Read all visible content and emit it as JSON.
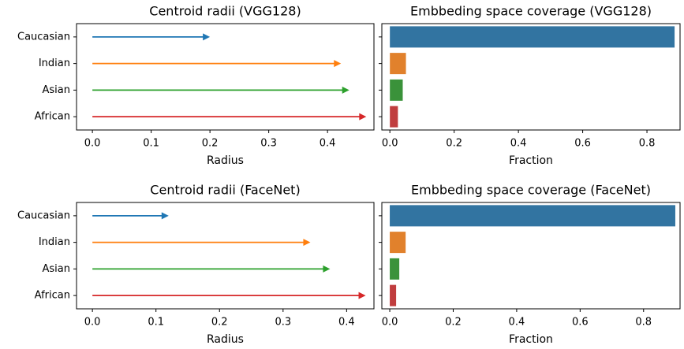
{
  "chart_data": [
    {
      "type": "arrow",
      "title": "Centroid radii (VGG128)",
      "xlabel": "Radius",
      "categories": [
        "Caucasian",
        "Indian",
        "Asian",
        "African"
      ],
      "values": [
        0.2,
        0.423,
        0.437,
        0.466
      ],
      "colors": [
        "#1f77b4",
        "#ff7f0e",
        "#2ca02c",
        "#d62728"
      ],
      "xlim": [
        -0.027,
        0.479
      ],
      "xticks": [
        {
          "value": 0,
          "label": "0.0"
        },
        0.1,
        0.2,
        0.3,
        0.4
      ]
    },
    {
      "type": "barh",
      "title": "Embbeding space coverage (VGG128)",
      "xlabel": "Fraction",
      "values": [
        0.886,
        0.05,
        0.04,
        0.025
      ],
      "colors": [
        "#3274a1",
        "#e1812c",
        "#3a923a",
        "#c03d3e"
      ],
      "xlim": [
        -0.025,
        0.903
      ],
      "xticks": [
        {
          "value": 0,
          "label": "0.0"
        },
        0.2,
        0.4,
        0.6,
        0.8
      ]
    },
    {
      "type": "arrow",
      "title": "Centroid radii (FaceNet)",
      "xlabel": "Radius",
      "categories": [
        "Caucasian",
        "Indian",
        "Asian",
        "African"
      ],
      "values": [
        0.12,
        0.343,
        0.374,
        0.43
      ],
      "colors": [
        "#1f77b4",
        "#ff7f0e",
        "#2ca02c",
        "#d62728"
      ],
      "xlim": [
        -0.025,
        0.443
      ],
      "xticks": [
        {
          "value": 0,
          "label": "0.0"
        },
        0.1,
        0.2,
        0.3,
        0.4
      ]
    },
    {
      "type": "barh",
      "title": "Embbeding space coverage (FaceNet)",
      "xlabel": "Fraction",
      "values": [
        0.9,
        0.05,
        0.03,
        0.02
      ],
      "colors": [
        "#3274a1",
        "#e1812c",
        "#3a923a",
        "#c03d3e"
      ],
      "xlim": [
        -0.025,
        0.915
      ],
      "xticks": [
        {
          "value": 0,
          "label": "0.0"
        },
        0.2,
        0.4,
        0.6,
        0.8
      ]
    }
  ]
}
